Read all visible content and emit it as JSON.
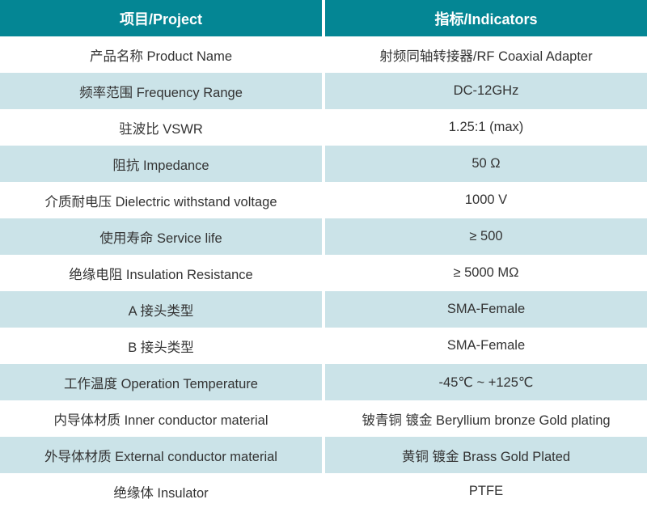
{
  "table": {
    "columns": {
      "project": "项目/Project",
      "indicators": "指标/Indicators"
    },
    "rows": [
      {
        "project": "产品名称 Product Name",
        "indicator": "射频同轴转接器/RF Coaxial Adapter"
      },
      {
        "project": "频率范围 Frequency Range",
        "indicator": "DC-12GHz"
      },
      {
        "project": "驻波比 VSWR",
        "indicator": "1.25:1 (max)"
      },
      {
        "project": "阻抗 Impedance",
        "indicator": "50 Ω"
      },
      {
        "project": "介质耐电压 Dielectric withstand voltage",
        "indicator": "1000 V"
      },
      {
        "project": "使用寿命 Service life",
        "indicator": "≥ 500"
      },
      {
        "project": "绝缘电阻 Insulation Resistance",
        "indicator": "≥ 5000 MΩ"
      },
      {
        "project": "A 接头类型",
        "indicator": "SMA-Female"
      },
      {
        "project": "B 接头类型",
        "indicator": "SMA-Female"
      },
      {
        "project": "工作温度 Operation Temperature",
        "indicator": "-45℃ ~ +125℃"
      },
      {
        "project": "内导体材质 Inner conductor material",
        "indicator": "铍青铜 镀金 Beryllium bronze Gold plating"
      },
      {
        "project": "外导体材质 External conductor material",
        "indicator": "黄铜 镀金 Brass Gold Plated"
      },
      {
        "project": "绝缘体 Insulator",
        "indicator": "PTFE"
      }
    ]
  },
  "colors": {
    "header_bg": "#048694",
    "header_text": "#ffffff",
    "row_alt_bg": "#cbe3e8",
    "row_bg": "#ffffff",
    "body_text": "#333333",
    "divider": "#ffffff"
  }
}
